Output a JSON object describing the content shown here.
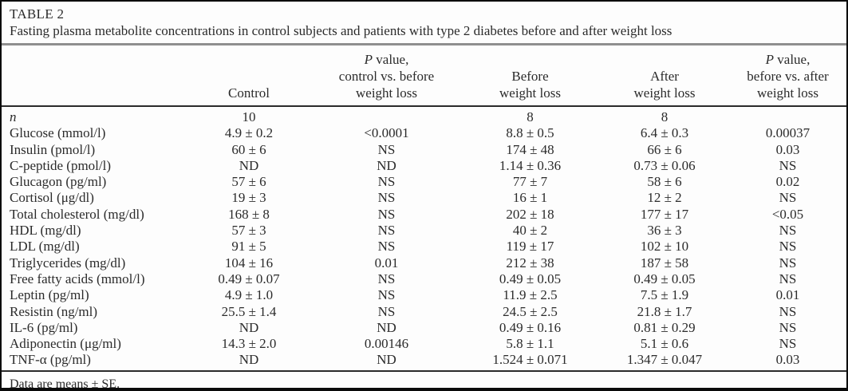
{
  "table": {
    "label": "TABLE 2",
    "caption": "Fasting plasma metabolite concentrations in control subjects and patients with type 2 diabetes before and after weight loss",
    "headers": {
      "parameter": "",
      "control": "Control",
      "p1": {
        "l1_italic": "P",
        "l1_rest": " value,",
        "l2": "control vs. before",
        "l3": "weight loss"
      },
      "before": {
        "l1": "Before",
        "l2": "weight loss"
      },
      "after": {
        "l1": "After",
        "l2": "weight loss"
      },
      "p2": {
        "l1_italic": "P",
        "l1_rest": " value,",
        "l2": "before vs. after",
        "l3": "weight loss"
      }
    },
    "rows": [
      [
        "n",
        "10",
        "",
        "8",
        "8",
        ""
      ],
      [
        "Glucose (mmol/l)",
        "4.9 ± 0.2",
        "<0.0001",
        "8.8 ± 0.5",
        "6.4 ± 0.3",
        "0.00037"
      ],
      [
        "Insulin (pmol/l)",
        "60 ± 6",
        "NS",
        "174 ± 48",
        "66 ± 6",
        "0.03"
      ],
      [
        "C-peptide (pmol/l)",
        "ND",
        "ND",
        "1.14 ± 0.36",
        "0.73 ± 0.06",
        "NS"
      ],
      [
        "Glucagon (pg/ml)",
        "57 ± 6",
        "NS",
        "77 ± 7",
        "58 ± 6",
        "0.02"
      ],
      [
        "Cortisol (μg/dl)",
        "19 ± 3",
        "NS",
        "16 ± 1",
        "12 ± 2",
        "NS"
      ],
      [
        "Total cholesterol (mg/dl)",
        "168 ± 8",
        "NS",
        "202 ± 18",
        "177 ± 17",
        "<0.05"
      ],
      [
        "HDL (mg/dl)",
        "57 ± 3",
        "NS",
        "40 ± 2",
        "36 ± 3",
        "NS"
      ],
      [
        "LDL (mg/dl)",
        "91 ± 5",
        "NS",
        "119 ± 17",
        "102 ± 10",
        "NS"
      ],
      [
        "Triglycerides (mg/dl)",
        "104 ± 16",
        "0.01",
        "212 ± 38",
        "187 ± 58",
        "NS"
      ],
      [
        "Free fatty acids (mmol/l)",
        "0.49 ± 0.07",
        "NS",
        "0.49 ± 0.05",
        "0.49 ± 0.05",
        "NS"
      ],
      [
        "Leptin (pg/ml)",
        "4.9 ± 1.0",
        "NS",
        "11.9 ± 2.5",
        "7.5 ± 1.9",
        "0.01"
      ],
      [
        "Resistin (ng/ml)",
        "25.5 ± 1.4",
        "NS",
        "24.5 ± 2.5",
        "21.8 ± 1.7",
        "NS"
      ],
      [
        "IL-6 (pg/ml)",
        "ND",
        "ND",
        "0.49 ± 0.16",
        "0.81 ± 0.29",
        "NS"
      ],
      [
        "Adiponectin (μg/ml)",
        "14.3 ± 2.0",
        "0.00146",
        "5.8 ± 1.1",
        "5.1 ± 0.6",
        "NS"
      ],
      [
        "TNF-α (pg/ml)",
        "ND",
        "ND",
        "1.524 ± 0.071",
        "1.347 ± 0.047",
        "0.03"
      ]
    ],
    "footnote": "Data are means ± SE."
  }
}
